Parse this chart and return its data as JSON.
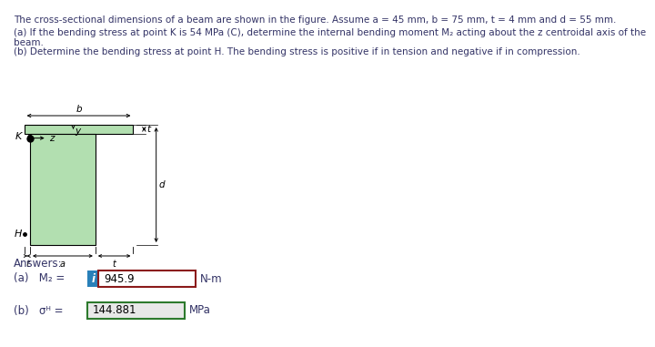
{
  "title_line1": "The cross-sectional dimensions of a beam are shown in the figure. Assume a = 45 mm, b = 75 mm, t = 4 mm and d = 55 mm.",
  "part_a_line1": "(a) If the bending stress at point K is 54 MPa (C), determine the internal bending moment M₂ acting about the z centroidal axis of the",
  "part_a_line2": "beam.",
  "part_b_text": "(b) Determine the bending stress at point H. The bending stress is positive if in tension and negative if in compression.",
  "answers_label": "Answers:",
  "answer_a_label": "(a)   M₂ =",
  "answer_a_value": "945.9",
  "answer_a_unit": "N-m",
  "answer_b_label": "(b)   σᴴ =",
  "answer_b_value": "144.881",
  "answer_b_unit": "MPa",
  "beam_fill_color": "#b2dfb0",
  "beam_line_color": "#000000",
  "bg_color": "#ffffff",
  "answer_a_box_border": "#8b1a1a",
  "answer_a_icon_bg": "#2980b9",
  "answer_b_box_border": "#2d7a2d",
  "answer_b_box_fill": "#e8e8e8",
  "text_color": "#333366",
  "label_color": "#000000",
  "font_size_title": 7.5,
  "font_size_body": 7.5,
  "font_size_answers": 8.5,
  "font_size_dim": 7.5
}
